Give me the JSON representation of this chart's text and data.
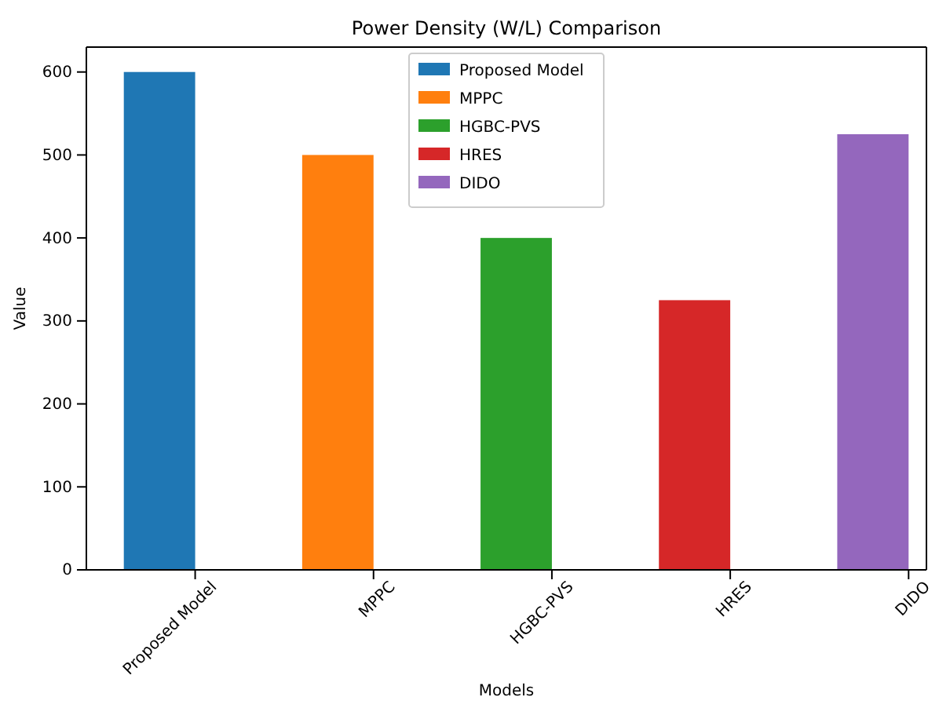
{
  "chart_data": {
    "type": "bar",
    "title": "Power Density (W/L) Comparison",
    "xlabel": "Models",
    "ylabel": "Value",
    "categories": [
      "Proposed Model",
      "MPPC",
      "HGBC-PVS",
      "HRES",
      "DIDO"
    ],
    "series": [
      {
        "name": "Proposed Model",
        "color": "#1f77b4",
        "values": [
          600,
          null,
          null,
          null,
          null
        ]
      },
      {
        "name": "MPPC",
        "color": "#ff7f0e",
        "values": [
          null,
          500,
          null,
          null,
          null
        ]
      },
      {
        "name": "HGBC-PVS",
        "color": "#2ca02c",
        "values": [
          null,
          null,
          400,
          null,
          null
        ]
      },
      {
        "name": "HRES",
        "color": "#d62728",
        "values": [
          null,
          null,
          null,
          325,
          null
        ]
      },
      {
        "name": "DIDO",
        "color": "#9467bd",
        "values": [
          null,
          null,
          null,
          null,
          525
        ]
      }
    ],
    "ylim": [
      0,
      630
    ],
    "yticks": [
      0,
      100,
      200,
      300,
      400,
      500,
      600
    ],
    "grid": false,
    "legend": "top"
  }
}
